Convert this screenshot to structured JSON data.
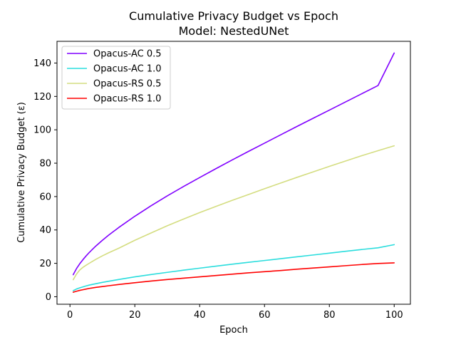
{
  "chart_data": {
    "type": "line",
    "title": "Cumulative Privacy Budget vs Epoch",
    "subtitle": "Model: NestedUNet",
    "xlabel": "Epoch",
    "ylabel": "Cumulative Privacy Budget (ε)",
    "xlim": [
      -4,
      105
    ],
    "ylim": [
      -4.5,
      153
    ],
    "xticks": [
      0,
      20,
      40,
      60,
      80,
      100
    ],
    "yticks": [
      0,
      20,
      40,
      60,
      80,
      100,
      120,
      140
    ],
    "grid": false,
    "legend_position": "top-left",
    "series": [
      {
        "name": "Opacus-AC 0.5",
        "color": "#8000ff",
        "x": [
          1,
          2,
          3,
          4,
          5,
          6,
          8,
          10,
          12,
          15,
          20,
          25,
          30,
          35,
          40,
          45,
          50,
          55,
          60,
          65,
          70,
          75,
          80,
          85,
          90,
          95,
          100
        ],
        "y": [
          13.2,
          16.8,
          19.7,
          22.2,
          24.5,
          26.6,
          30.4,
          33.8,
          37.0,
          41.4,
          48.2,
          54.5,
          60.4,
          66.0,
          71.4,
          76.7,
          81.9,
          87.0,
          92.0,
          97.0,
          102.0,
          106.9,
          111.8,
          116.7,
          121.6,
          126.5,
          146.0
        ]
      },
      {
        "name": "Opacus-AC 1.0",
        "color": "#2adddd",
        "x": [
          1,
          2,
          3,
          4,
          5,
          6,
          8,
          10,
          12,
          15,
          20,
          25,
          30,
          35,
          40,
          45,
          50,
          55,
          60,
          65,
          70,
          75,
          80,
          85,
          90,
          95,
          100
        ],
        "y": [
          3.6,
          4.6,
          5.3,
          5.9,
          6.5,
          7.0,
          7.8,
          8.6,
          9.3,
          10.3,
          11.9,
          13.3,
          14.6,
          15.9,
          17.1,
          18.3,
          19.5,
          20.6,
          21.7,
          22.8,
          23.9,
          25.0,
          26.1,
          27.2,
          28.3,
          29.3,
          31.2
        ]
      },
      {
        "name": "Opacus-RS 0.5",
        "color": "#d4dd80",
        "x": [
          1,
          2,
          3,
          4,
          5,
          6,
          8,
          10,
          12,
          15,
          20,
          25,
          30,
          35,
          40,
          45,
          50,
          55,
          60,
          65,
          70,
          75,
          80,
          85,
          90,
          95,
          100
        ],
        "y": [
          10.2,
          13.5,
          16.0,
          17.6,
          18.9,
          20.1,
          22.4,
          24.5,
          26.4,
          29.0,
          33.8,
          38.2,
          42.5,
          46.5,
          50.4,
          54.1,
          57.7,
          61.2,
          64.7,
          68.1,
          71.5,
          74.8,
          78.1,
          81.3,
          84.5,
          87.5,
          90.4
        ]
      },
      {
        "name": "Opacus-RS 1.0",
        "color": "#ff0000",
        "x": [
          1,
          2,
          3,
          4,
          5,
          6,
          8,
          10,
          12,
          15,
          20,
          25,
          30,
          35,
          40,
          45,
          50,
          55,
          60,
          65,
          70,
          75,
          80,
          85,
          90,
          95,
          100
        ],
        "y": [
          2.7,
          3.3,
          3.8,
          4.2,
          4.6,
          5.0,
          5.6,
          6.1,
          6.6,
          7.3,
          8.4,
          9.4,
          10.3,
          11.1,
          11.9,
          12.7,
          13.5,
          14.3,
          15.0,
          15.7,
          16.5,
          17.2,
          17.9,
          18.6,
          19.3,
          19.9,
          20.3
        ]
      }
    ]
  }
}
